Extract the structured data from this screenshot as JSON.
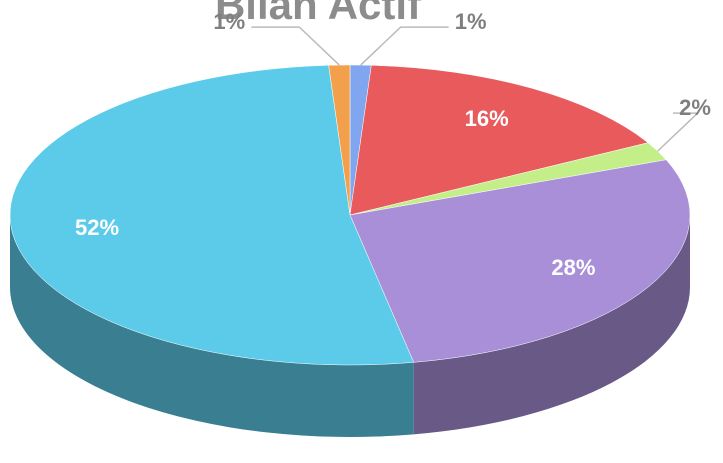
{
  "chart_data": {
    "type": "pie",
    "title": "Bilan Actif",
    "values": [
      1,
      16,
      2,
      28,
      52,
      1
    ],
    "value_labels": [
      "1%",
      "16%",
      "2%",
      "28%",
      "52%",
      "1%"
    ],
    "colors": [
      "#7fa6ee",
      "#e85a5c",
      "#c4ef88",
      "#a88fd8",
      "#5ccbea",
      "#f2a04c"
    ]
  }
}
